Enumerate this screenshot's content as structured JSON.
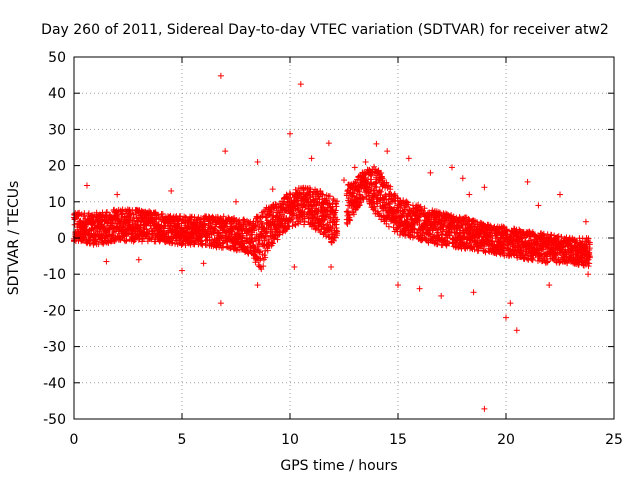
{
  "chart_data": {
    "type": "scatter",
    "title": "Day 260 of 2011, Sidereal Day-to-day VTEC variation (SDTVAR) for receiver atw2",
    "xlabel": "GPS time / hours",
    "ylabel": "SDTVAR / TECUs",
    "xlim": [
      0,
      25
    ],
    "ylim": [
      -50,
      50
    ],
    "xticks": [
      0,
      5,
      10,
      15,
      20,
      25
    ],
    "yticks": [
      -50,
      -40,
      -30,
      -20,
      -10,
      0,
      10,
      20,
      30,
      40,
      50
    ],
    "grid": true,
    "marker": "+",
    "color": "#ff0000",
    "series": [
      {
        "name": "SDTVAR",
        "bands": [
          [
            0.0,
            -1,
            7
          ],
          [
            1.0,
            -2,
            7
          ],
          [
            2.0,
            -1,
            8
          ],
          [
            3.0,
            -1,
            8
          ],
          [
            4.0,
            -1,
            7
          ],
          [
            5.0,
            -2,
            6
          ],
          [
            6.0,
            -2,
            6
          ],
          [
            7.0,
            -3,
            6
          ],
          [
            8.0,
            -4,
            5
          ],
          [
            8.7,
            -9,
            7
          ],
          [
            9.0,
            -3,
            9
          ],
          [
            9.5,
            0,
            10
          ],
          [
            10.0,
            3,
            13
          ],
          [
            10.5,
            4,
            14
          ],
          [
            11.0,
            3,
            14
          ],
          [
            11.5,
            1,
            13
          ],
          [
            12.0,
            -2,
            11
          ],
          [
            13.5,
            11,
            19
          ],
          [
            14.0,
            6,
            20
          ],
          [
            15.0,
            1,
            11
          ],
          [
            16.0,
            -1,
            9
          ],
          [
            17.0,
            -2,
            7
          ],
          [
            18.0,
            -3,
            6
          ],
          [
            19.0,
            -4,
            4
          ],
          [
            20.0,
            -5,
            3
          ],
          [
            21.0,
            -6,
            2
          ],
          [
            22.0,
            -7,
            1
          ],
          [
            23.0,
            -7,
            0
          ],
          [
            23.9,
            -8,
            0
          ]
        ],
        "gaps": [
          [
            12.2,
            12.6
          ]
        ],
        "outliers": [
          [
            0.6,
            14.5
          ],
          [
            6.8,
            44.8
          ],
          [
            10.5,
            42.5
          ],
          [
            10.0,
            28.8
          ],
          [
            11.8,
            26.2
          ],
          [
            13.5,
            21.0
          ],
          [
            14.0,
            26.0
          ],
          [
            15.5,
            22.0
          ],
          [
            17.5,
            19.5
          ],
          [
            18.0,
            16.5
          ],
          [
            19.0,
            14.0
          ],
          [
            21.0,
            15.5
          ],
          [
            22.5,
            12.0
          ],
          [
            23.7,
            4.5
          ],
          [
            19.0,
            -47.2
          ],
          [
            20.0,
            -22.0
          ],
          [
            20.5,
            -25.5
          ],
          [
            6.8,
            -18.0
          ],
          [
            8.5,
            -13.0
          ],
          [
            8.5,
            21.0
          ],
          [
            7.0,
            24.0
          ],
          [
            16.0,
            -14.0
          ],
          [
            17.0,
            -16.0
          ],
          [
            4.5,
            13.0
          ],
          [
            10.2,
            -8.0
          ],
          [
            11.9,
            -8.0
          ],
          [
            13.0,
            19.5
          ],
          [
            15.0,
            -13.0
          ],
          [
            18.5,
            -15.0
          ],
          [
            20.2,
            -18.0
          ],
          [
            22.0,
            -13.0
          ],
          [
            23.8,
            -10.0
          ],
          [
            5.0,
            -9.0
          ],
          [
            2.0,
            12.0
          ],
          [
            9.2,
            13.5
          ],
          [
            11.0,
            22.0
          ],
          [
            12.5,
            16.0
          ],
          [
            14.5,
            24.0
          ],
          [
            16.5,
            18.0
          ],
          [
            18.3,
            12.0
          ],
          [
            21.5,
            9.0
          ],
          [
            3.0,
            -6.0
          ],
          [
            1.5,
            -6.5
          ],
          [
            7.5,
            10.0
          ],
          [
            6.0,
            -7.0
          ]
        ]
      }
    ]
  }
}
